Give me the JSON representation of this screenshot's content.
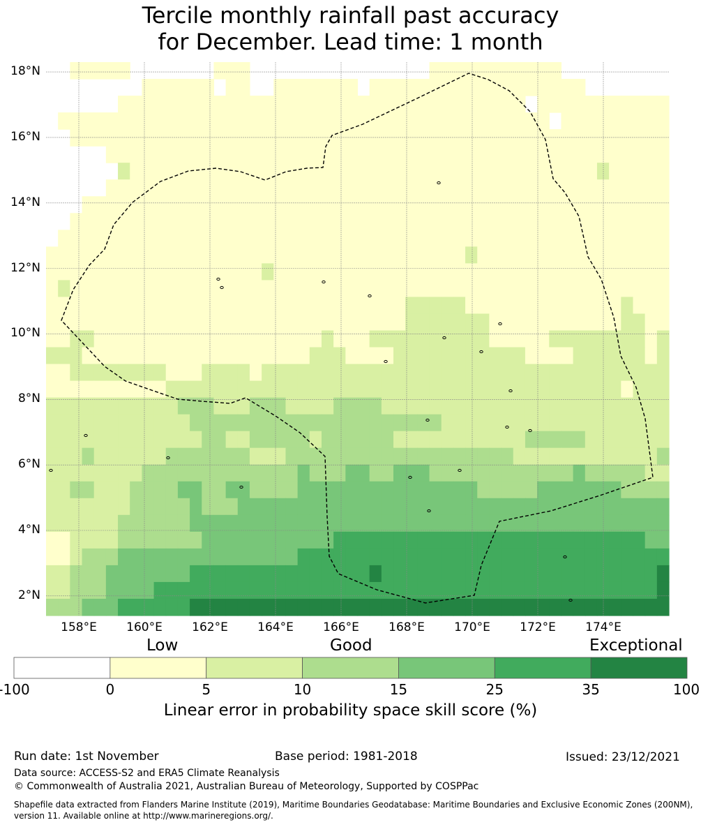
{
  "title": {
    "line1": "Tercile monthly rainfall past accuracy",
    "line2": "for December. Lead time: 1 month"
  },
  "map": {
    "lat_labels": [
      "18°N",
      "16°N",
      "14°N",
      "12°N",
      "10°N",
      "8°N",
      "6°N",
      "4°N",
      "2°N"
    ],
    "lon_labels": [
      "158°E",
      "160°E",
      "162°E",
      "164°E",
      "166°E",
      "168°E",
      "170°E",
      "172°E",
      "174°E"
    ],
    "lat_range": [
      1.4,
      18.3
    ],
    "lon_range": [
      157.0,
      176.0
    ],
    "grid_resolution_deg": 0.55,
    "region_outline": "Exclusive Economic Zone (200NM) boundary",
    "colors": {
      "below_0": "#ffffff",
      "0_5": "#ffffcc",
      "5_10": "#d9f0a3",
      "10_15": "#addd8e",
      "15_25": "#78c679",
      "25_35": "#41ab5d",
      "35_100": "#238443"
    }
  },
  "colorbar": {
    "qualitative_labels": [
      "Low",
      "Good",
      "Exceptional"
    ],
    "ticks": [
      "-100",
      "0",
      "5",
      "10",
      "15",
      "25",
      "35",
      "100"
    ],
    "title": "Linear error in probability space skill score (%)",
    "colors": [
      "#ffffff",
      "#ffffcc",
      "#d9f0a3",
      "#addd8e",
      "#78c679",
      "#41ab5d",
      "#238443"
    ]
  },
  "footer": {
    "run_date": "Run date: 1st November",
    "base_period": "Base period: 1981-2018",
    "issued": "Issued: 23/12/2021",
    "data_source": "Data source: ACCESS-S2 and ERA5 Climate Reanalysis",
    "copyright": "© Commonwealth of Australia 2021, Australian Bureau of Meteorology, Supported by COSPPac",
    "shapefile_line1": "Shapefile data extracted from Flanders Marine Institute (2019), Maritime Boundaries Geodatabase: Maritime Boundaries and Exclusive Economic Zones (200NM),",
    "shapefile_line2": "version 11. Available online at http://www.marineregions.org/."
  }
}
